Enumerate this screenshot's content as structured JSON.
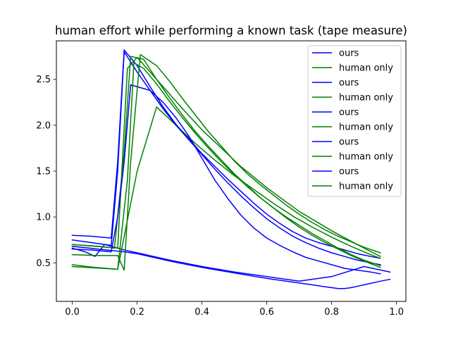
{
  "chart_data": {
    "type": "line",
    "title": "human effort while performing a known task (tape measure)",
    "xlabel": "",
    "ylabel": "",
    "xlim": [
      -0.049,
      1.029
    ],
    "ylim": [
      0.08,
      2.92
    ],
    "xticks": [
      0.0,
      0.2,
      0.4,
      0.6,
      0.8,
      1.0
    ],
    "xtick_labels": [
      "0.0",
      "0.2",
      "0.4",
      "0.6",
      "0.8",
      "1.0"
    ],
    "yticks": [
      0.5,
      1.0,
      1.5,
      2.0,
      2.5
    ],
    "ytick_labels": [
      "0.5",
      "1.0",
      "1.5",
      "2.0",
      "2.5"
    ],
    "grid": false,
    "legend_position": "top-right",
    "colors": {
      "ours": "#0000ff",
      "human only": "#008000"
    },
    "series": [
      {
        "name": "ours",
        "color": "#0000ff",
        "x": [
          0.0,
          0.04,
          0.07,
          0.1,
          0.12,
          0.14,
          0.16,
          0.2,
          0.3,
          0.4,
          0.5,
          0.6,
          0.7,
          0.8,
          0.9,
          0.98
        ],
        "y": [
          0.66,
          0.62,
          0.57,
          0.7,
          0.68,
          0.66,
          0.64,
          0.61,
          0.53,
          0.46,
          0.4,
          0.35,
          0.3,
          0.35,
          0.46,
          0.4
        ]
      },
      {
        "name": "human only",
        "color": "#008000",
        "x": [
          0.0,
          0.14,
          0.17,
          0.2,
          0.26,
          0.34,
          0.4,
          0.46,
          0.52,
          0.6,
          0.7,
          0.8,
          0.9,
          0.95
        ],
        "y": [
          0.7,
          0.66,
          2.62,
          2.74,
          2.5,
          2.18,
          1.95,
          1.75,
          1.55,
          1.32,
          1.06,
          0.85,
          0.66,
          0.57
        ]
      },
      {
        "name": "ours",
        "color": "#0000ff",
        "x": [
          0.0,
          0.06,
          0.12,
          0.14,
          0.16,
          0.2,
          0.24,
          0.28,
          0.32,
          0.36,
          0.4,
          0.44,
          0.48,
          0.52,
          0.56,
          0.6,
          0.64,
          0.68,
          0.72,
          0.76,
          0.8,
          0.84,
          0.88,
          0.92,
          0.95
        ],
        "y": [
          0.8,
          0.79,
          0.77,
          1.6,
          2.82,
          2.65,
          2.42,
          2.2,
          2.01,
          1.85,
          1.69,
          1.55,
          1.41,
          1.28,
          1.15,
          1.03,
          0.93,
          0.84,
          0.77,
          0.72,
          0.68,
          0.64,
          0.6,
          0.57,
          0.55
        ]
      },
      {
        "name": "human only",
        "color": "#008000",
        "x": [
          0.0,
          0.07,
          0.14,
          0.2,
          0.26,
          0.32,
          0.38,
          0.44,
          0.5,
          0.56,
          0.62,
          0.68,
          0.74,
          0.8,
          0.86,
          0.92,
          0.95
        ],
        "y": [
          0.48,
          0.45,
          0.43,
          1.5,
          2.2,
          2.0,
          1.8,
          1.62,
          1.45,
          1.3,
          1.15,
          1.01,
          0.89,
          0.78,
          0.68,
          0.59,
          0.55
        ]
      },
      {
        "name": "ours",
        "color": "#0000ff",
        "x": [
          0.0,
          0.06,
          0.12,
          0.14,
          0.16,
          0.2,
          0.24,
          0.28,
          0.32,
          0.36,
          0.4,
          0.44,
          0.48,
          0.52,
          0.56,
          0.6,
          0.64,
          0.68,
          0.72,
          0.76,
          0.8,
          0.84,
          0.88,
          0.92,
          0.95
        ],
        "y": [
          0.75,
          0.72,
          0.69,
          1.5,
          2.8,
          2.58,
          2.38,
          2.18,
          2.0,
          1.84,
          1.68,
          1.52,
          1.37,
          1.23,
          1.1,
          0.98,
          0.88,
          0.79,
          0.72,
          0.66,
          0.61,
          0.57,
          0.53,
          0.5,
          0.48
        ]
      },
      {
        "name": "human only",
        "color": "#008000",
        "x": [
          0.0,
          0.08,
          0.13,
          0.16,
          0.18,
          0.22,
          0.26,
          0.3,
          0.34,
          0.38,
          0.42,
          0.46,
          0.5,
          0.54,
          0.58,
          0.62,
          0.66,
          0.7,
          0.74,
          0.78,
          0.82,
          0.86,
          0.9,
          0.95
        ],
        "y": [
          0.7,
          0.68,
          0.66,
          1.7,
          2.75,
          2.72,
          2.5,
          2.3,
          2.11,
          1.93,
          1.77,
          1.62,
          1.47,
          1.34,
          1.21,
          1.1,
          0.99,
          0.89,
          0.8,
          0.72,
          0.65,
          0.58,
          0.52,
          0.45
        ]
      },
      {
        "name": "ours",
        "color": "#0000ff",
        "x": [
          0.0,
          0.06,
          0.12,
          0.14,
          0.16,
          0.18,
          0.2,
          0.24,
          0.28,
          0.32,
          0.36,
          0.4,
          0.44,
          0.48,
          0.52,
          0.56,
          0.6,
          0.64,
          0.68,
          0.72,
          0.76,
          0.8,
          0.84,
          0.88,
          0.92,
          0.95
        ],
        "y": [
          0.65,
          0.64,
          0.62,
          1.0,
          1.6,
          2.44,
          2.42,
          2.38,
          2.25,
          2.08,
          1.88,
          1.64,
          1.4,
          1.2,
          1.02,
          0.88,
          0.77,
          0.69,
          0.62,
          0.56,
          0.52,
          0.48,
          0.44,
          0.42,
          0.4,
          0.38
        ]
      },
      {
        "name": "human only",
        "color": "#008000",
        "x": [
          0.0,
          0.08,
          0.14,
          0.16,
          0.18,
          0.21,
          0.26,
          0.3,
          0.34,
          0.38,
          0.42,
          0.46,
          0.5,
          0.54,
          0.58,
          0.62,
          0.66,
          0.7,
          0.74,
          0.78,
          0.82,
          0.86,
          0.9,
          0.95
        ],
        "y": [
          0.59,
          0.58,
          0.58,
          0.42,
          1.6,
          2.77,
          2.65,
          2.48,
          2.29,
          2.11,
          1.93,
          1.77,
          1.61,
          1.47,
          1.35,
          1.24,
          1.13,
          1.03,
          0.94,
          0.86,
          0.79,
          0.73,
          0.67,
          0.61
        ]
      },
      {
        "name": "ours",
        "color": "#0000ff",
        "x": [
          0.0,
          0.08,
          0.16,
          0.2,
          0.3,
          0.4,
          0.5,
          0.6,
          0.7,
          0.74,
          0.78,
          0.82,
          0.84,
          0.86,
          0.9,
          0.95,
          0.98
        ],
        "y": [
          0.68,
          0.65,
          0.62,
          0.6,
          0.52,
          0.45,
          0.39,
          0.33,
          0.28,
          0.26,
          0.24,
          0.22,
          0.22,
          0.23,
          0.26,
          0.3,
          0.32
        ]
      },
      {
        "name": "human only",
        "color": "#008000",
        "x": [
          0.0,
          0.14,
          0.17,
          0.19,
          0.22,
          0.26,
          0.3,
          0.34,
          0.38,
          0.42,
          0.46,
          0.5,
          0.54,
          0.58,
          0.62,
          0.66,
          0.7,
          0.74,
          0.78,
          0.82,
          0.86,
          0.9,
          0.95
        ],
        "y": [
          0.46,
          0.43,
          1.4,
          2.68,
          2.62,
          2.45,
          2.26,
          2.08,
          1.91,
          1.75,
          1.6,
          1.46,
          1.33,
          1.21,
          1.1,
          1.0,
          0.91,
          0.82,
          0.74,
          0.66,
          0.59,
          0.53,
          0.47
        ]
      }
    ]
  }
}
